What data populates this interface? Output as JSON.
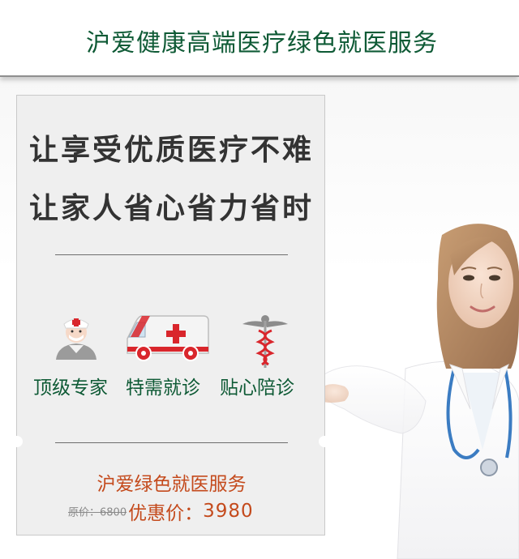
{
  "header": {
    "title": "沪爱健康高端医疗绿色就医服务"
  },
  "card": {
    "slogan_line1": "让享受优质医疗不难",
    "slogan_line2": "让家人省心省力省时",
    "features": [
      {
        "label": "顶级专家",
        "icon": "nurse-icon"
      },
      {
        "label": "特需就诊",
        "icon": "ambulance-icon"
      },
      {
        "label": "贴心陪诊",
        "icon": "caduceus-icon"
      }
    ],
    "service_name": "沪爱绿色就医服务",
    "original_price": "原价：6800",
    "sale_label": "优惠价：",
    "sale_price": "3980"
  },
  "colors": {
    "brand_green": "#0e5a35",
    "price_orange": "#c44a1c",
    "card_bg": "#efefef"
  }
}
